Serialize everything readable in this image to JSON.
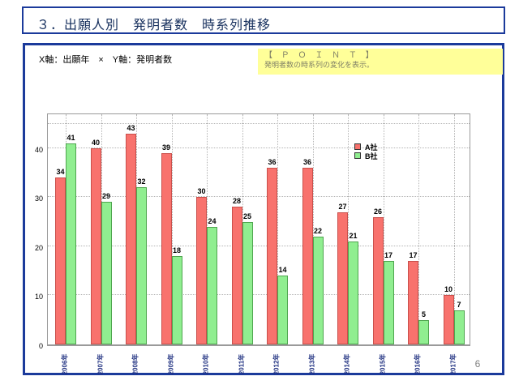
{
  "page": {
    "title": "３．出願人別　発明者数　時系列推移",
    "page_number": "6"
  },
  "panel": {
    "axes_note": "X軸：出願年　×　Y軸：発明者数",
    "point_box": {
      "heading": "【 Ｐ Ｏ Ｉ Ｎ Ｔ 】",
      "body": "発明者数の時系列の変化を表示。",
      "bg_color": "#FFFF99"
    }
  },
  "chart_data": {
    "type": "bar",
    "title": "",
    "xlabel": "出願年",
    "ylabel": "発明者数",
    "categories": [
      "2006年",
      "2007年",
      "2008年",
      "2009年",
      "2010年",
      "2011年",
      "2012年",
      "2013年",
      "2014年",
      "2015年",
      "2016年",
      "2017年"
    ],
    "series": [
      {
        "name": "A社",
        "color": "#f8726d",
        "border_color": "#c94f4b",
        "values": [
          34,
          40,
          43,
          39,
          30,
          28,
          36,
          36,
          27,
          26,
          17,
          10
        ]
      },
      {
        "name": "B社",
        "color": "#90ee90",
        "border_color": "#4fa54f",
        "values": [
          41,
          29,
          32,
          18,
          24,
          25,
          14,
          22,
          21,
          17,
          5,
          7
        ]
      }
    ],
    "yticks": [
      0,
      10,
      20,
      30,
      40
    ],
    "gridlines": [
      10,
      20,
      30,
      40,
      45
    ],
    "ylim": [
      0,
      47.4
    ],
    "grid": true,
    "legend_position": "inside-top-right",
    "colors": {
      "grid": "#b3b3b3",
      "axis": "#9a9a9a",
      "xtick_text": "#1f3080",
      "panel_border": "#1b3a9b"
    }
  }
}
